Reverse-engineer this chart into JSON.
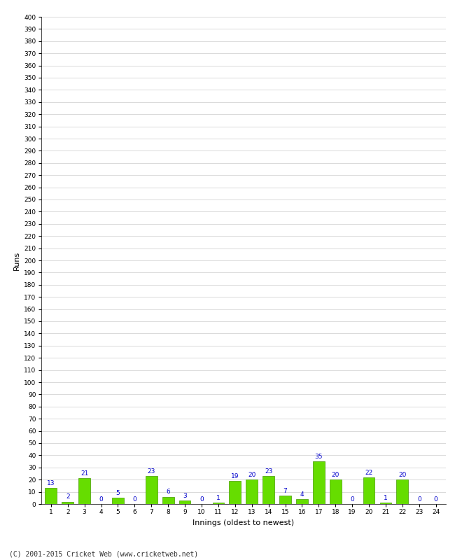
{
  "xlabel": "Innings (oldest to newest)",
  "ylabel": "Runs",
  "values": [
    13,
    2,
    21,
    0,
    5,
    0,
    23,
    6,
    3,
    0,
    1,
    19,
    20,
    23,
    7,
    4,
    35,
    20,
    0,
    22,
    1,
    20,
    0,
    0
  ],
  "categories": [
    1,
    2,
    3,
    4,
    5,
    6,
    7,
    8,
    9,
    10,
    11,
    12,
    13,
    14,
    15,
    16,
    17,
    18,
    19,
    20,
    21,
    22,
    23,
    24
  ],
  "bar_color": "#66dd00",
  "bar_edge_color": "#449900",
  "label_color": "#0000cc",
  "ylim": [
    0,
    400
  ],
  "ytick_step": 10,
  "background_color": "#ffffff",
  "grid_color": "#cccccc",
  "footer": "(C) 2001-2015 Cricket Web (www.cricketweb.net)"
}
